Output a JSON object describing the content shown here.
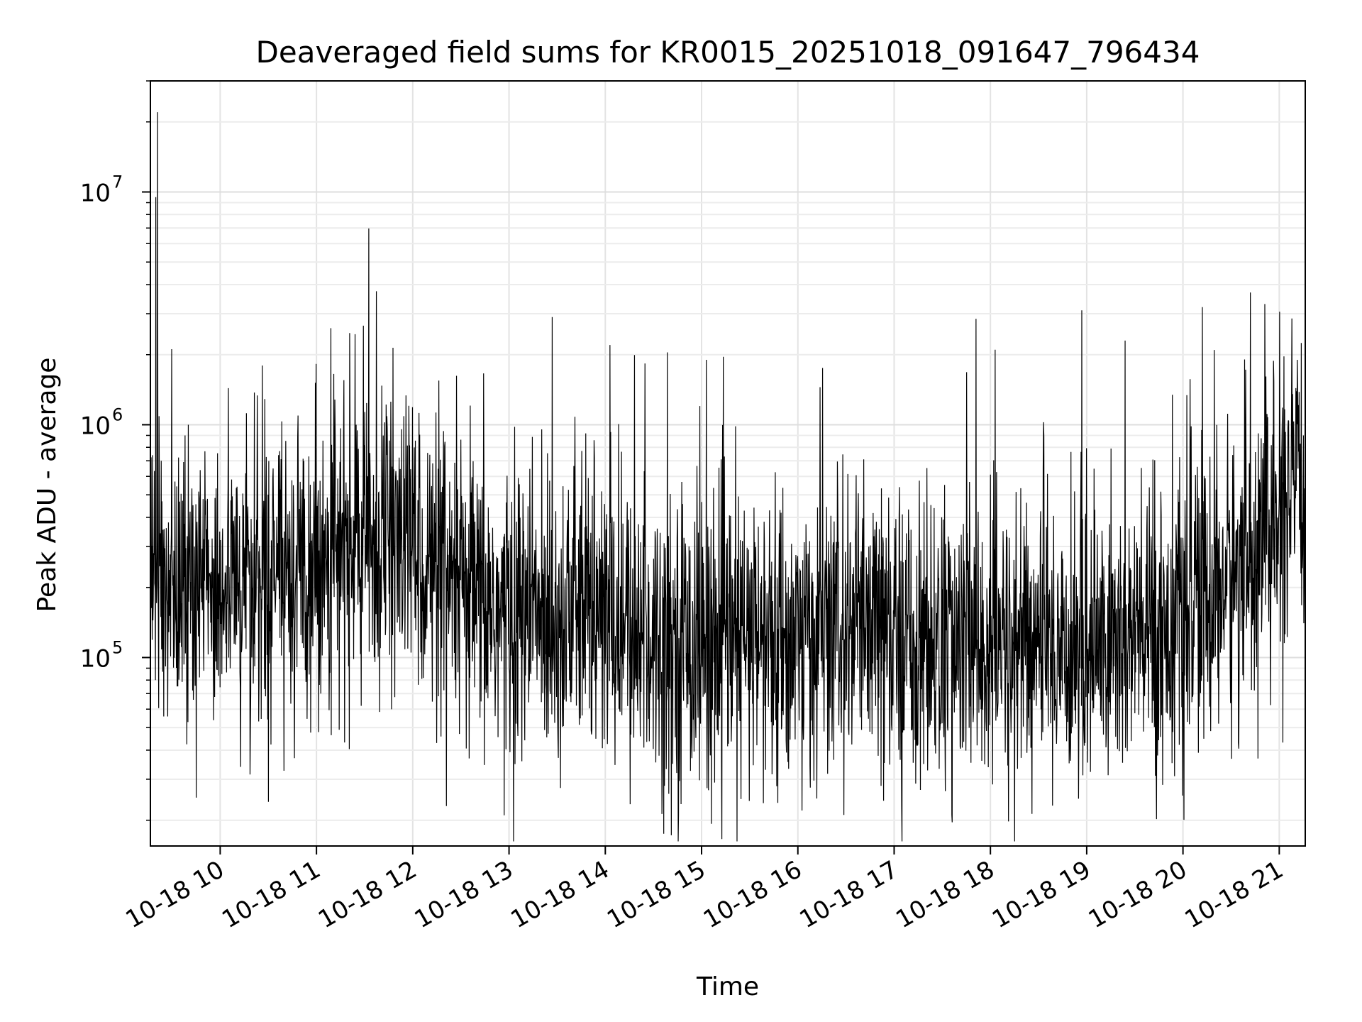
{
  "chart_data": {
    "type": "line",
    "title": "Deaveraged field sums for KR0015_20251018_091647_796434",
    "xlabel": "Time",
    "ylabel": "Peak ADU - average",
    "yscale": "log",
    "ylim": [
      15500,
      30000000
    ],
    "xlim_hours": [
      9.275,
      21.27
    ],
    "grid": true,
    "legend": "none",
    "x_ticks": [
      {
        "hour": 10,
        "label": "10-18 10"
      },
      {
        "hour": 11,
        "label": "10-18 11"
      },
      {
        "hour": 12,
        "label": "10-18 12"
      },
      {
        "hour": 13,
        "label": "10-18 13"
      },
      {
        "hour": 14,
        "label": "10-18 14"
      },
      {
        "hour": 15,
        "label": "10-18 15"
      },
      {
        "hour": 16,
        "label": "10-18 16"
      },
      {
        "hour": 17,
        "label": "10-18 17"
      },
      {
        "hour": 18,
        "label": "10-18 18"
      },
      {
        "hour": 19,
        "label": "10-18 19"
      },
      {
        "hour": 20,
        "label": "10-18 20"
      },
      {
        "hour": 21,
        "label": "10-18 21"
      }
    ],
    "y_ticks": [
      {
        "value": 100000,
        "base": "10",
        "exp": "5"
      },
      {
        "value": 1000000,
        "base": "10",
        "exp": "6"
      },
      {
        "value": 10000000,
        "base": "10",
        "exp": "7"
      }
    ],
    "series": [
      {
        "name": "deaveraged field sum",
        "color": "#000000",
        "note": "dense noisy time series; baseline (hour, typical value) with spread factor (log10) and notable spikes",
        "baseline": [
          [
            9.28,
            220000
          ],
          [
            9.5,
            210000
          ],
          [
            10.0,
            200000
          ],
          [
            10.5,
            230000
          ],
          [
            11.0,
            270000
          ],
          [
            11.5,
            300000
          ],
          [
            12.0,
            320000
          ],
          [
            12.3,
            200000
          ],
          [
            12.8,
            160000
          ],
          [
            13.3,
            150000
          ],
          [
            13.8,
            160000
          ],
          [
            14.2,
            130000
          ],
          [
            14.8,
            120000
          ],
          [
            15.5,
            115000
          ],
          [
            16.0,
            120000
          ],
          [
            16.5,
            130000
          ],
          [
            17.0,
            120000
          ],
          [
            17.5,
            115000
          ],
          [
            18.0,
            105000
          ],
          [
            18.5,
            115000
          ],
          [
            19.0,
            110000
          ],
          [
            19.5,
            120000
          ],
          [
            20.0,
            140000
          ],
          [
            20.5,
            220000
          ],
          [
            21.0,
            380000
          ],
          [
            21.27,
            550000
          ]
        ],
        "spread_log10": 0.32,
        "spikes": [
          [
            9.35,
            22000000
          ],
          [
            9.33,
            9500000
          ],
          [
            12.95,
            21000
          ],
          [
            10.5,
            24000
          ],
          [
            9.75,
            25000
          ],
          [
            12.35,
            23000
          ],
          [
            13.45,
            2900000
          ],
          [
            11.15,
            2600000
          ],
          [
            11.4,
            2450000
          ],
          [
            14.05,
            2200000
          ],
          [
            17.85,
            2850000
          ],
          [
            18.95,
            3100000
          ],
          [
            20.2,
            3200000
          ],
          [
            20.7,
            3700000
          ],
          [
            20.85,
            3300000
          ],
          [
            15.78,
            28000
          ],
          [
            19.4,
            2300000
          ],
          [
            18.05,
            2100000
          ],
          [
            15.05,
            1900000
          ]
        ]
      }
    ]
  }
}
